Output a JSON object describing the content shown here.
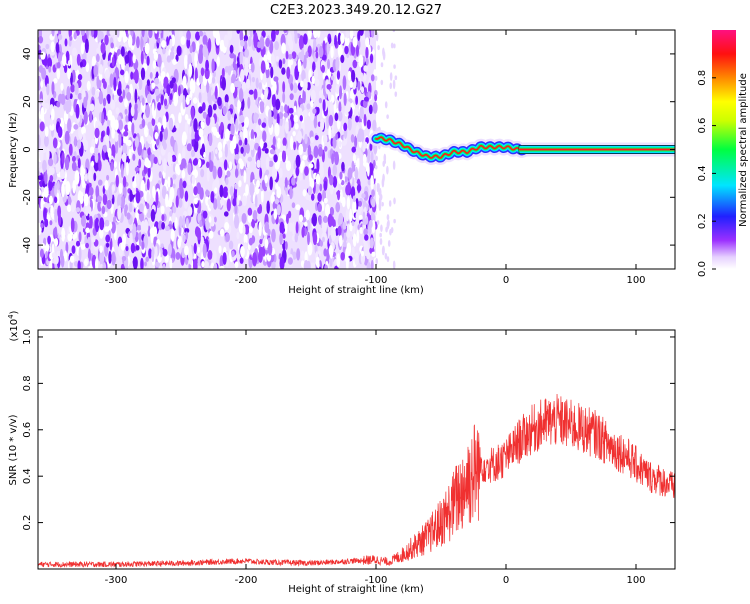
{
  "title": "C2E3.2023.349.20.12.G27",
  "chart_data": [
    {
      "type": "heatmap",
      "title": "C2E3.2023.349.20.12.G27",
      "xlabel": "Height of straight line (km)",
      "ylabel": "Frequency (Hz)",
      "xlim": [
        -360,
        130
      ],
      "ylim": [
        -50,
        50
      ],
      "x_ticks": [
        -300,
        -200,
        -100,
        0,
        100
      ],
      "y_ticks": [
        -40,
        -20,
        0,
        20,
        40
      ],
      "colorbar": {
        "label": "Normalized spectral amplitude",
        "range": [
          0.0,
          1.0
        ],
        "ticks": [
          0.0,
          0.2,
          0.4,
          0.6,
          0.8
        ],
        "colormap": "rainbow (white-violet-blue-cyan-green-yellow-orange-red-pink)"
      },
      "noise_region": {
        "x_range": [
          -360,
          -100
        ],
        "y_range": [
          -50,
          50
        ]
      },
      "tone_track": {
        "x": [
          -100,
          -90,
          -80,
          -70,
          -60,
          -50,
          -40,
          -30,
          -20,
          -10,
          0,
          10,
          130
        ],
        "y": [
          5,
          4,
          2,
          -1,
          -3,
          -3,
          -1,
          -1,
          1,
          1,
          1,
          0,
          0
        ]
      },
      "grid": false
    },
    {
      "type": "line",
      "xlabel": "Height of straight line (km)",
      "ylabel": "SNR (10 * v/v)",
      "y_multiplier": "(x10^4)",
      "xlim": [
        -360,
        130
      ],
      "ylim": [
        0,
        1.03
      ],
      "x_ticks": [
        -300,
        -200,
        -100,
        0,
        100
      ],
      "y_ticks": [
        0.2,
        0.4,
        0.6,
        0.8,
        1.0
      ],
      "series_color": "#f03030",
      "x": [
        -360,
        -300,
        -250,
        -200,
        -190,
        -150,
        -100,
        -90,
        -80,
        -70,
        -60,
        -50,
        -40,
        -30,
        -20,
        -10,
        0,
        10,
        20,
        30,
        40,
        50,
        60,
        70,
        80,
        90,
        100,
        110,
        120,
        130
      ],
      "y": [
        0.02,
        0.02,
        0.025,
        0.035,
        0.03,
        0.025,
        0.04,
        0.03,
        0.06,
        0.1,
        0.14,
        0.2,
        0.28,
        0.38,
        0.45,
        0.45,
        0.48,
        0.55,
        0.6,
        0.63,
        0.64,
        0.62,
        0.6,
        0.58,
        0.53,
        0.5,
        0.45,
        0.4,
        0.38,
        0.35
      ],
      "grid": false
    }
  ]
}
